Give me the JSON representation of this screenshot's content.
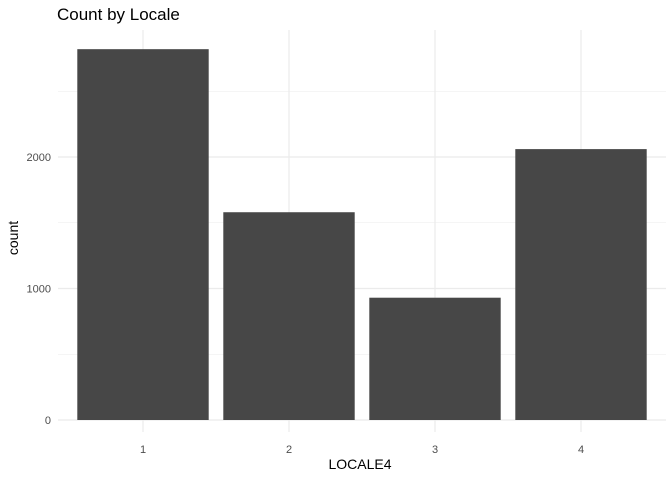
{
  "chart_data": {
    "type": "bar",
    "title": "Count by Locale",
    "xlabel": "LOCALE4",
    "ylabel": "count",
    "categories": [
      "1",
      "2",
      "3",
      "4"
    ],
    "values": [
      2820,
      1580,
      930,
      2060
    ],
    "ylim": [
      0,
      2960
    ],
    "yticks": [
      0,
      1000,
      2000
    ],
    "grid": true,
    "legend": "none",
    "bar_color": "#474747",
    "grid_color": "#ebebeb"
  }
}
